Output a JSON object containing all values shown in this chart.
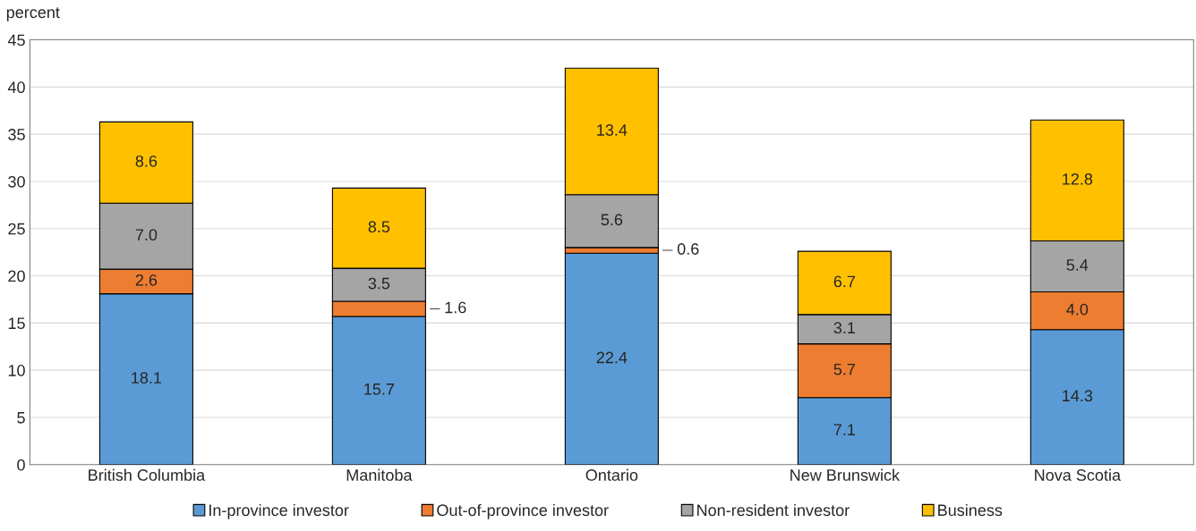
{
  "chart_data": {
    "type": "bar",
    "stacked": true,
    "ylabel": "percent",
    "categories": [
      "British Columbia",
      "Manitoba",
      "Ontario",
      "New Brunswick",
      "Nova Scotia"
    ],
    "series": [
      {
        "name": "In-province investor",
        "color": "#5b9bd5",
        "values": [
          18.1,
          15.7,
          22.4,
          7.1,
          14.3
        ],
        "value_labels": [
          "18.1",
          "15.7",
          "22.4",
          "7.1",
          "14.3"
        ]
      },
      {
        "name": "Out-of-province investor",
        "color": "#ed7d31",
        "values": [
          2.6,
          1.6,
          0.6,
          5.7,
          4.0
        ],
        "value_labels": [
          "2.6",
          "1.6",
          "0.6",
          "5.7",
          "4.0"
        ]
      },
      {
        "name": "Non-resident investor",
        "color": "#a5a5a5",
        "values": [
          7.0,
          3.5,
          5.6,
          3.1,
          5.4
        ],
        "value_labels": [
          "7.0",
          "3.5",
          "5.6",
          "3.1",
          "5.4"
        ]
      },
      {
        "name": "Business",
        "color": "#ffc000",
        "values": [
          8.6,
          8.5,
          13.4,
          6.7,
          12.8
        ],
        "value_labels": [
          "8.6",
          "8.5",
          "13.4",
          "6.7",
          "12.8"
        ]
      }
    ],
    "ylim": [
      0,
      45
    ],
    "yticks": [
      0,
      5,
      10,
      15,
      20,
      25,
      30,
      35,
      40,
      45
    ],
    "grid": "y",
    "legend": "bottom"
  }
}
